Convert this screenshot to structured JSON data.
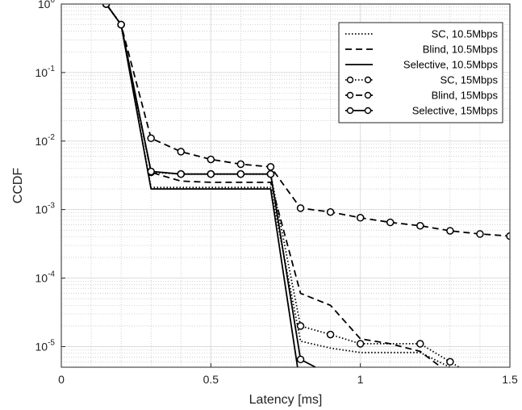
{
  "chart_data": {
    "type": "line",
    "title": "",
    "xlabel": "Latency [ms]",
    "ylabel": "CCDF",
    "xlim": [
      0,
      1.5
    ],
    "ylim": [
      5e-06,
      1
    ],
    "yscale": "log",
    "grid": true,
    "legend_position": "top-right",
    "x_ticks": [
      {
        "v": 0,
        "label": "0"
      },
      {
        "v": 0.5,
        "label": "0.5"
      },
      {
        "v": 1,
        "label": "1"
      },
      {
        "v": 1.5,
        "label": "1.5"
      }
    ],
    "y_ticks": [
      {
        "v": 1,
        "base": "10",
        "exp": "0"
      },
      {
        "v": 0.1,
        "base": "10",
        "exp": "-1"
      },
      {
        "v": 0.01,
        "base": "10",
        "exp": "-2"
      },
      {
        "v": 0.001,
        "base": "10",
        "exp": "-3"
      },
      {
        "v": 0.0001,
        "base": "10",
        "exp": "-4"
      },
      {
        "v": 1e-05,
        "base": "10",
        "exp": "-5"
      }
    ],
    "series": [
      {
        "name": "SC, 10.5Mbps",
        "style": "dotted",
        "marker": "none",
        "x": [
          0.15,
          0.2,
          0.3,
          0.4,
          0.5,
          0.6,
          0.7,
          0.8,
          0.9,
          1.0,
          1.1,
          1.2,
          1.3
        ],
        "y": [
          1,
          0.5,
          0.0021,
          0.0021,
          0.0021,
          0.0021,
          0.0021,
          1.2e-05,
          9.5e-06,
          8.2e-06,
          8.2e-06,
          8.2e-06,
          5e-06
        ]
      },
      {
        "name": "Blind, 10.5Mbps",
        "style": "dashed",
        "marker": "none",
        "x": [
          0.15,
          0.2,
          0.3,
          0.4,
          0.5,
          0.6,
          0.7,
          0.8,
          0.9,
          1.0,
          1.1,
          1.2,
          1.27
        ],
        "y": [
          1,
          0.5,
          0.0035,
          0.0026,
          0.0025,
          0.0025,
          0.0025,
          6e-05,
          4e-05,
          1.3e-05,
          1.1e-05,
          8.5e-06,
          5e-06
        ]
      },
      {
        "name": "Selective, 10.5Mbps",
        "style": "solid",
        "marker": "none",
        "x": [
          0.15,
          0.2,
          0.3,
          0.4,
          0.5,
          0.6,
          0.7,
          0.79
        ],
        "y": [
          1,
          0.5,
          0.002,
          0.002,
          0.002,
          0.002,
          0.002,
          5e-06
        ]
      },
      {
        "name": "SC, 15Mbps",
        "style": "dotted",
        "marker": "circle",
        "x": [
          0.15,
          0.2,
          0.3,
          0.4,
          0.5,
          0.6,
          0.7,
          0.8,
          0.9,
          1.0,
          1.2,
          1.3,
          1.33
        ],
        "y": [
          1,
          0.5,
          0.0035,
          0.0033,
          0.0033,
          0.0033,
          0.0033,
          2e-05,
          1.5e-05,
          1.1e-05,
          1.1e-05,
          6e-06,
          5e-06
        ]
      },
      {
        "name": "Blind, 15Mbps",
        "style": "dashed",
        "marker": "circle",
        "x": [
          0.15,
          0.2,
          0.3,
          0.4,
          0.5,
          0.6,
          0.7,
          0.8,
          0.9,
          1.0,
          1.1,
          1.2,
          1.3,
          1.4,
          1.5
        ],
        "y": [
          1,
          0.5,
          0.011,
          0.007,
          0.0054,
          0.0046,
          0.0042,
          0.00105,
          0.00092,
          0.00076,
          0.00065,
          0.00058,
          0.00049,
          0.00044,
          0.00041
        ]
      },
      {
        "name": "Selective, 15Mbps",
        "style": "solid",
        "marker": "circle",
        "x": [
          0.15,
          0.2,
          0.3,
          0.4,
          0.5,
          0.6,
          0.7,
          0.8,
          0.85
        ],
        "y": [
          1,
          0.5,
          0.0036,
          0.0033,
          0.0033,
          0.0033,
          0.0033,
          6.5e-06,
          5e-06
        ]
      }
    ]
  }
}
